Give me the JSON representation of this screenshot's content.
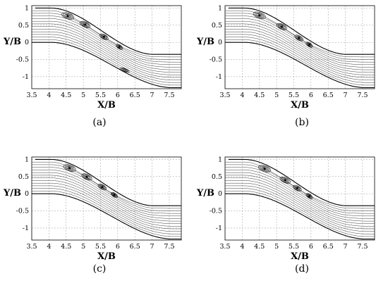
{
  "axes": {
    "x_label": "X/B",
    "y_label": "Y/B",
    "x_ticks": [
      "3.5",
      "4",
      "4.5",
      "5",
      "5.5",
      "6",
      "6.5",
      "7",
      "7.5"
    ],
    "y_ticks": [
      "1",
      "0.5",
      "0",
      "-0.5",
      "-1"
    ]
  },
  "panels": [
    {
      "id": "a",
      "caption": "(a)",
      "vortex_x": [
        4.55,
        5.05,
        5.6,
        6.05
      ],
      "lower_wall_vortex_x": 6.2
    },
    {
      "id": "b",
      "caption": "(b)",
      "vortex_x": [
        4.5,
        5.15,
        5.65,
        5.95
      ],
      "lower_wall_vortex_x": null
    },
    {
      "id": "c",
      "caption": "(c)",
      "vortex_x": [
        4.6,
        5.1,
        5.55,
        5.9
      ],
      "lower_wall_vortex_x": null
    },
    {
      "id": "d",
      "caption": "(d)",
      "vortex_x": [
        4.65,
        5.25,
        5.6,
        5.95
      ],
      "lower_wall_vortex_x": null
    }
  ]
}
